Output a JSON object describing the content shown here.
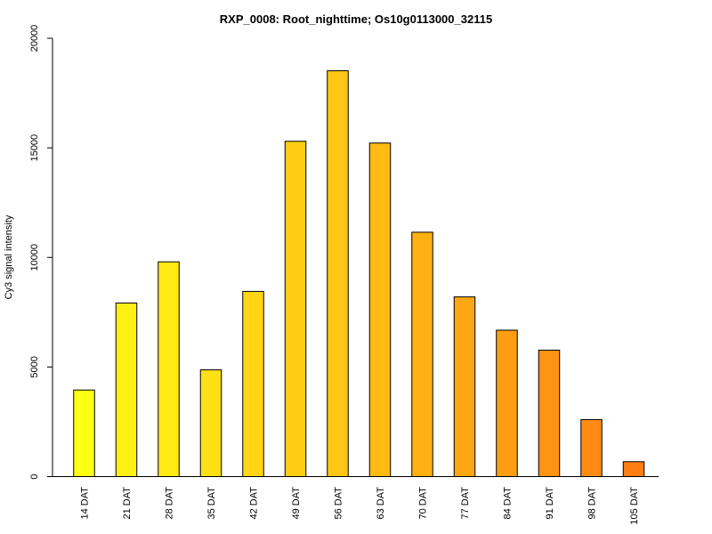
{
  "chart_data": {
    "type": "bar",
    "title": "RXP_0008: Root_nighttime; Os10g0113000_32115",
    "xlabel": "",
    "ylabel": "Cy3 signal intensity",
    "ylim": [
      0,
      20000
    ],
    "yticks": [
      0,
      5000,
      10000,
      15000,
      20000
    ],
    "grid": false,
    "categories": [
      "14 DAT",
      "21 DAT",
      "28 DAT",
      "35 DAT",
      "42 DAT",
      "49 DAT",
      "56 DAT",
      "63 DAT",
      "70 DAT",
      "77 DAT",
      "84 DAT",
      "91 DAT",
      "98 DAT",
      "105 DAT"
    ],
    "values": [
      3950,
      7920,
      9800,
      4870,
      8450,
      15300,
      18520,
      15220,
      11150,
      8200,
      6680,
      5770,
      2600,
      680
    ],
    "colors": [
      "#FFFF14",
      "#FFF014",
      "#FFEA14",
      "#FFE014",
      "#FFD614",
      "#FFCE14",
      "#FFC614",
      "#FFBA14",
      "#FFB014",
      "#FFA614",
      "#FF9E14",
      "#FF9414",
      "#FF8A14",
      "#FF7E14"
    ]
  }
}
